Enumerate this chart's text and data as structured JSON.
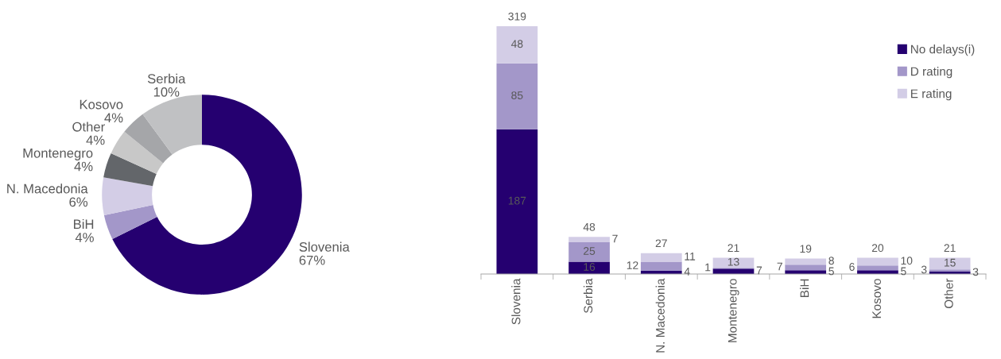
{
  "chart_data": [
    {
      "type": "donut",
      "categories": [
        "Slovenia",
        "BiH",
        "N. Macedonia",
        "Montenegro",
        "Other",
        "Kosovo",
        "Serbia"
      ],
      "values": [
        67,
        4,
        6,
        4,
        4,
        4,
        10
      ],
      "colors": [
        "#250070",
        "#a397c9",
        "#d3cde6",
        "#63666a",
        "#c8c8c8",
        "#a5a6a9",
        "#c0c1c3"
      ],
      "value_labels": [
        "67%",
        "4%",
        "6%",
        "4%",
        "4%",
        "4%",
        "10%"
      ]
    },
    {
      "type": "bar",
      "stacked": true,
      "categories": [
        "Slovenia",
        "Serbia",
        "N. Macedonia",
        "Montenegro",
        "BiH",
        "Kosovo",
        "Other"
      ],
      "series": [
        {
          "name": "No delays(i)",
          "color": "#250070",
          "values": [
            187,
            16,
            4,
            7,
            5,
            5,
            3
          ]
        },
        {
          "name": "D rating",
          "color": "#a397c9",
          "values": [
            85,
            25,
            12,
            1,
            7,
            6,
            3
          ]
        },
        {
          "name": "E rating",
          "color": "#d3cde6",
          "values": [
            48,
            7,
            11,
            13,
            8,
            10,
            15
          ]
        }
      ],
      "totals": [
        "319",
        "48",
        "27",
        "21",
        "19",
        "20",
        "21"
      ],
      "data_labels": true,
      "legend": "top right"
    }
  ]
}
